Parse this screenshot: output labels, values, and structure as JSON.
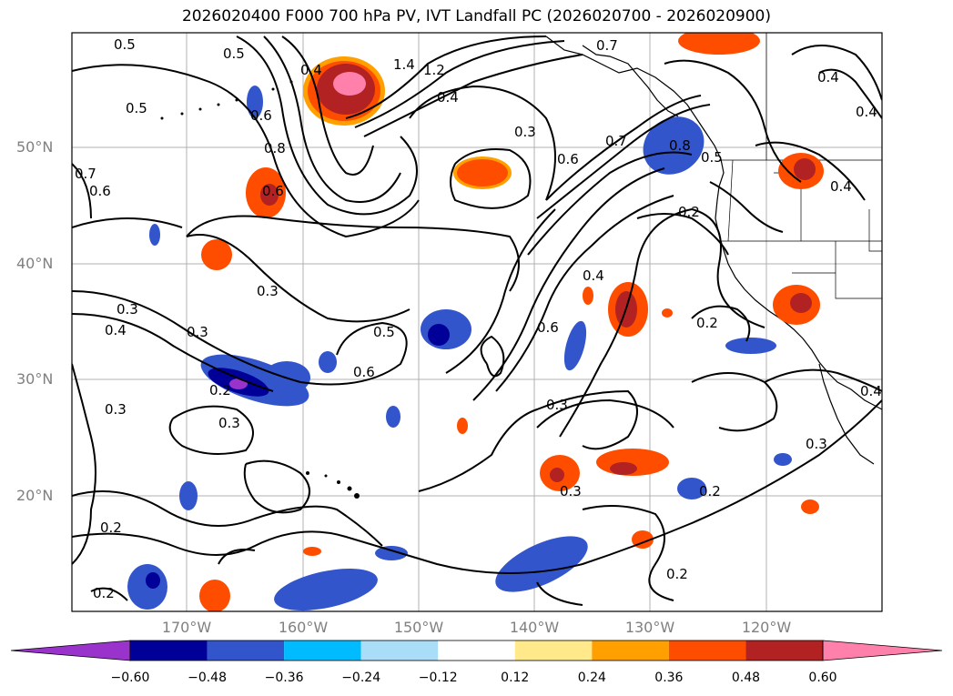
{
  "title": "2026020400 F000 700 hPa PV, IVT Landfall PC (2026020700 - 2026020900)",
  "lat_labels": [
    "50°N",
    "40°N",
    "30°N",
    "20°N"
  ],
  "lon_labels": [
    "170°W",
    "160°W",
    "150°W",
    "140°W",
    "130°W",
    "120°W"
  ],
  "colorbar": {
    "ticks": [
      "−0.60",
      "−0.48",
      "−0.36",
      "−0.24",
      "−0.12",
      "0.12",
      "0.24",
      "0.36",
      "0.48",
      "0.60"
    ],
    "colors": [
      "#9933cc",
      "#000099",
      "#3355cc",
      "#00bbff",
      "#aaddf8",
      "#ffffff",
      "#ffe98a",
      "#ffa000",
      "#ff4d00",
      "#b22222",
      "#ff80aa"
    ]
  },
  "contour_labels": [
    "0.5",
    "0.5",
    "0.5",
    "0.4",
    "1.4",
    "1.2",
    "0.4",
    "0.7",
    "0.4",
    "0.4",
    "0.6",
    "0.8",
    "0.6",
    "0.7",
    "0.8",
    "0.6",
    "0.3",
    "0.6",
    "0.7",
    "0.5",
    "0.4",
    "0.2",
    "0.3",
    "0.3",
    "0.4",
    "0.4",
    "0.5",
    "0.6",
    "0.3",
    "0.3",
    "0.2",
    "0.6",
    "0.2",
    "0.3",
    "0.3",
    "0.3",
    "0.2",
    "0.2",
    "0.2",
    "0.2",
    "0.2",
    "0.4",
    "0.3"
  ],
  "legend_extend": "both"
}
